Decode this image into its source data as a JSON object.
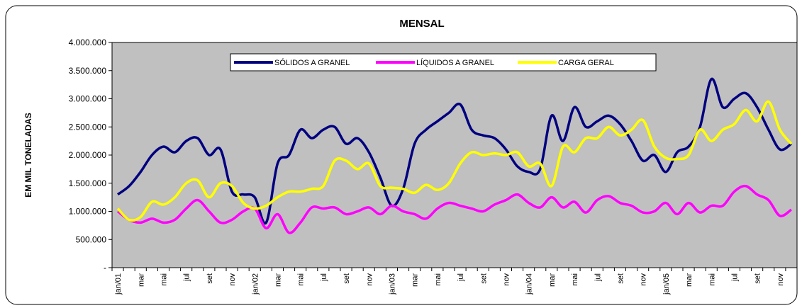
{
  "chart_data": {
    "type": "line",
    "title": "MENSAL",
    "y_label": "EM MIL TONELADAS",
    "categories": [
      "jan/01",
      null,
      "mar",
      null,
      "mai",
      null,
      "jul",
      null,
      "set",
      null,
      "nov",
      null,
      "jan/02",
      null,
      "mar",
      null,
      "mai",
      null,
      "jul",
      null,
      "set",
      null,
      "nov",
      null,
      "jan/03",
      null,
      "mar",
      null,
      "mai",
      null,
      "jul",
      null,
      "set",
      null,
      "nov",
      null,
      "jan/04",
      null,
      "mar",
      null,
      "mai",
      null,
      "jul",
      null,
      "set",
      null,
      "nov",
      null,
      "jan/05",
      null,
      "mar",
      null,
      "mai",
      null,
      "jul",
      null,
      "set",
      null,
      "nov",
      null
    ],
    "series": [
      {
        "name": "SÓLIDOS A GRANEL",
        "color": "#000080",
        "values": [
          1300000,
          1450000,
          1700000,
          2000000,
          2150000,
          2050000,
          2250000,
          2300000,
          2000000,
          2100000,
          1350000,
          1300000,
          1250000,
          800000,
          1850000,
          2000000,
          2450000,
          2300000,
          2450000,
          2500000,
          2200000,
          2300000,
          2050000,
          1600000,
          1100000,
          1400000,
          2200000,
          2450000,
          2600000,
          2750000,
          2900000,
          2450000,
          2350000,
          2300000,
          2100000,
          1800000,
          1700000,
          1750000,
          2700000,
          2250000,
          2850000,
          2500000,
          2600000,
          2700000,
          2550000,
          2250000,
          1900000,
          2000000,
          1700000,
          2050000,
          2150000,
          2500000,
          3350000,
          2850000,
          3000000,
          3100000,
          2850000,
          2450000,
          2100000,
          2200000
        ]
      },
      {
        "name": "LÍQUIDOS A GRANEL",
        "color": "#ff00ff",
        "values": [
          1000000,
          850000,
          800000,
          870000,
          800000,
          850000,
          1050000,
          1200000,
          1000000,
          800000,
          850000,
          1000000,
          1050000,
          700000,
          950000,
          620000,
          800000,
          1070000,
          1050000,
          1070000,
          950000,
          1000000,
          1070000,
          950000,
          1100000,
          1000000,
          950000,
          870000,
          1050000,
          1150000,
          1100000,
          1050000,
          1000000,
          1120000,
          1200000,
          1300000,
          1150000,
          1070000,
          1250000,
          1070000,
          1170000,
          980000,
          1200000,
          1270000,
          1150000,
          1100000,
          980000,
          1000000,
          1150000,
          950000,
          1150000,
          980000,
          1100000,
          1100000,
          1350000,
          1450000,
          1300000,
          1200000,
          920000,
          1030000
        ]
      },
      {
        "name": "CARGA GERAL",
        "color": "#ffff00",
        "values": [
          1050000,
          850000,
          900000,
          1170000,
          1120000,
          1250000,
          1500000,
          1550000,
          1250000,
          1500000,
          1450000,
          1150000,
          1050000,
          1100000,
          1250000,
          1350000,
          1350000,
          1400000,
          1450000,
          1900000,
          1900000,
          1750000,
          1850000,
          1450000,
          1420000,
          1400000,
          1330000,
          1470000,
          1380000,
          1500000,
          1850000,
          2050000,
          2000000,
          2030000,
          2000000,
          2050000,
          1800000,
          1850000,
          1450000,
          2150000,
          2050000,
          2300000,
          2300000,
          2500000,
          2350000,
          2450000,
          2620000,
          2150000,
          1950000,
          1930000,
          2000000,
          2450000,
          2250000,
          2450000,
          2550000,
          2800000,
          2600000,
          2950000,
          2450000,
          2200000
        ]
      }
    ],
    "ylim": [
      0,
      4000000
    ],
    "yticks": [
      {
        "value": 0,
        "label": "-"
      },
      {
        "value": 500000,
        "label": "500.000"
      },
      {
        "value": 1000000,
        "label": "1.000.000"
      },
      {
        "value": 1500000,
        "label": "1.500.000"
      },
      {
        "value": 2000000,
        "label": "2.000.000"
      },
      {
        "value": 2500000,
        "label": "2.500.000"
      },
      {
        "value": 3000000,
        "label": "3.000.000"
      },
      {
        "value": 3500000,
        "label": "3.500.000"
      },
      {
        "value": 4000000,
        "label": "4.000.000"
      }
    ],
    "plot_background": "#c0c0c0"
  }
}
